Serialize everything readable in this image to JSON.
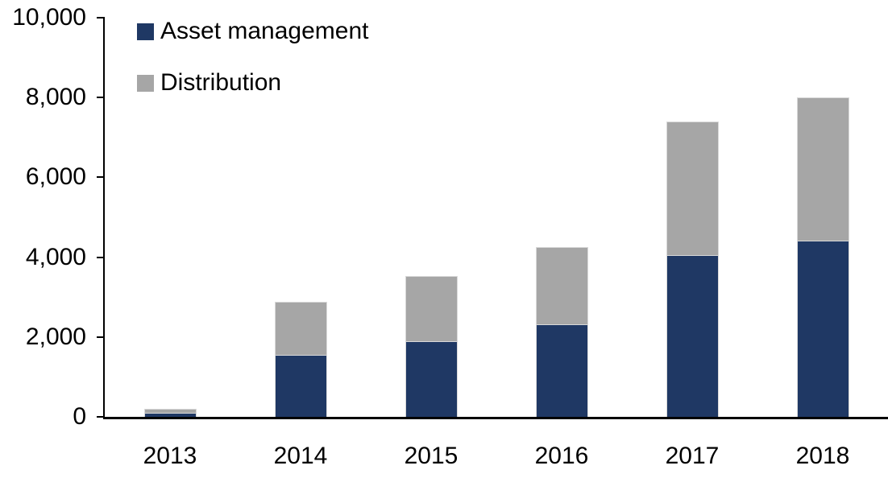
{
  "chart_data": {
    "type": "bar",
    "variant": "stacked-vertical",
    "categories": [
      "2013",
      "2014",
      "2015",
      "2016",
      "2017",
      "2018"
    ],
    "series": [
      {
        "name": "Asset management",
        "color": "#1f3864",
        "values": [
          100,
          1550,
          1900,
          2320,
          4050,
          4420
        ]
      },
      {
        "name": "Distribution",
        "color": "#a6a6a6",
        "values": [
          100,
          1330,
          1620,
          1930,
          3350,
          3580
        ]
      }
    ],
    "totals": [
      200,
      2880,
      3520,
      4250,
      7400,
      8000
    ],
    "title": "",
    "xlabel": "",
    "ylabel": "",
    "ylim": [
      0,
      10000
    ],
    "yticks": {
      "values": [
        0,
        2000,
        4000,
        6000,
        8000,
        10000
      ],
      "labels": [
        "0",
        "2,000",
        "4,000",
        "6,000",
        "8,000",
        "10,000"
      ]
    },
    "grid": false,
    "legend_position": "top-left",
    "axis_color": "#000000",
    "background_color": "#ffffff"
  }
}
